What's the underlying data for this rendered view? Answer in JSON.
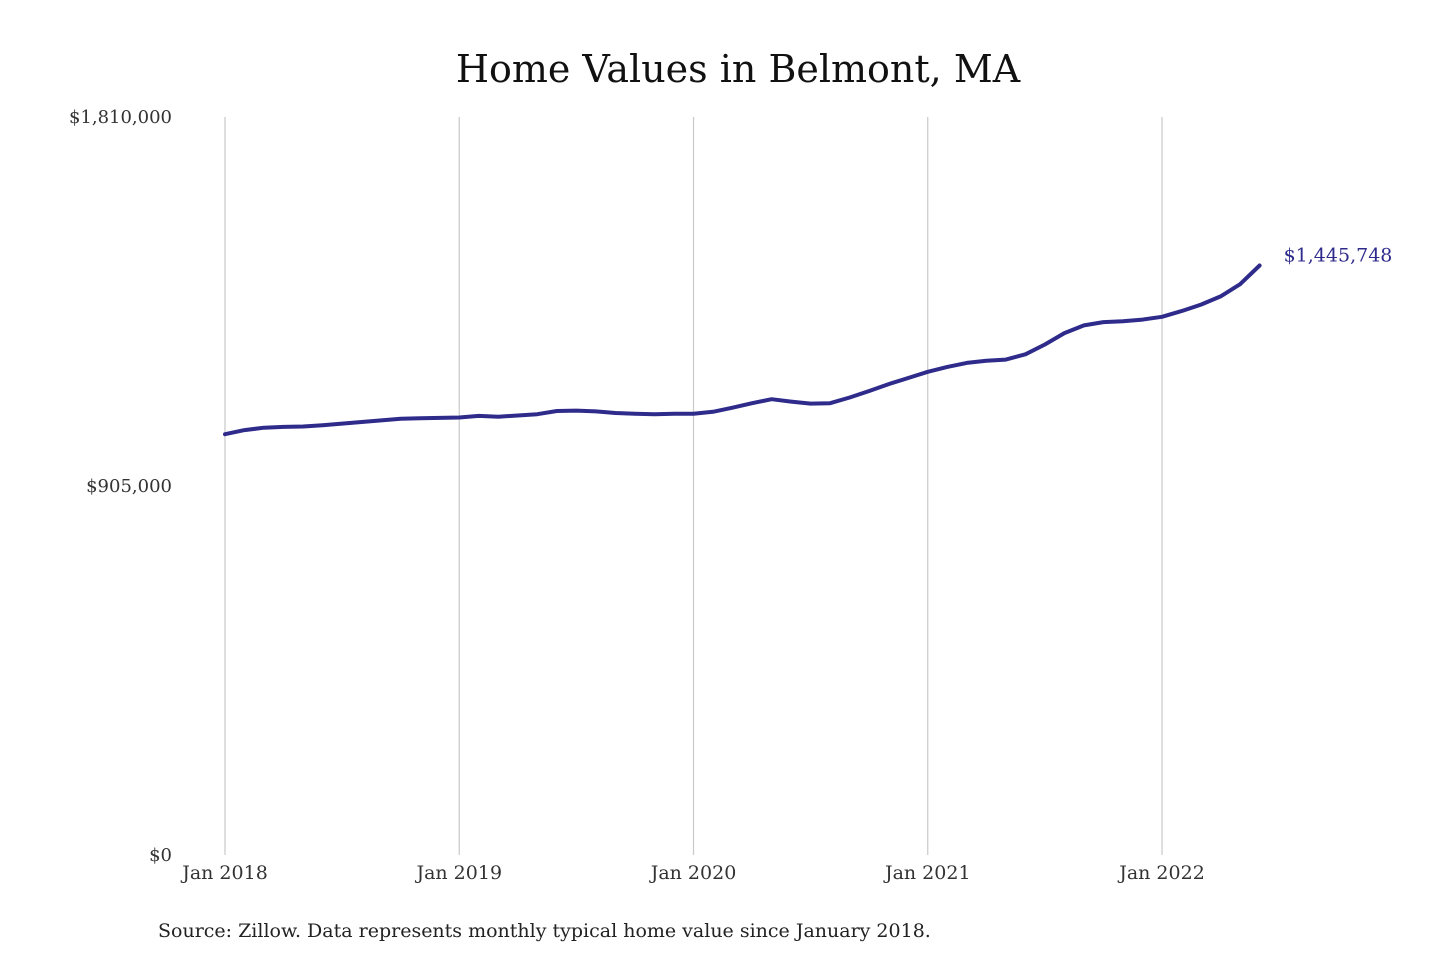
{
  "colors": {
    "line": "#2e2b8b",
    "grid": "#c9c9c9",
    "text": "#111111"
  },
  "chart_data": {
    "type": "line",
    "title": "Home Values in Belmont, MA",
    "xlabel": "",
    "ylabel": "",
    "ylim": [
      0,
      1810000
    ],
    "grid": "vertical at x tick positions",
    "legend": "none",
    "yticks": [
      {
        "value": 0,
        "label": "$0"
      },
      {
        "value": 905000,
        "label": "$905,000"
      },
      {
        "value": 1810000,
        "label": "$1,810,000"
      }
    ],
    "xticks": [
      {
        "value": 0,
        "label": "Jan 2018"
      },
      {
        "value": 12,
        "label": "Jan 2019"
      },
      {
        "value": 24,
        "label": "Jan 2020"
      },
      {
        "value": 36,
        "label": "Jan 2021"
      },
      {
        "value": 48,
        "label": "Jan 2022"
      }
    ],
    "series": [
      {
        "x": [
          "2018-01",
          "2018-02",
          "2018-03",
          "2018-04",
          "2018-05",
          "2018-06",
          "2018-07",
          "2018-08",
          "2018-09",
          "2018-10",
          "2018-11",
          "2018-12",
          "2019-01",
          "2019-02",
          "2019-03",
          "2019-04",
          "2019-05",
          "2019-06",
          "2019-07",
          "2019-08",
          "2019-09",
          "2019-10",
          "2019-11",
          "2019-12",
          "2020-01",
          "2020-02",
          "2020-03",
          "2020-04",
          "2020-05",
          "2020-06",
          "2020-07",
          "2020-08",
          "2020-09",
          "2020-10",
          "2020-11",
          "2020-12",
          "2021-01",
          "2021-02",
          "2021-03",
          "2021-04",
          "2021-05",
          "2021-06",
          "2021-07",
          "2021-08",
          "2021-09",
          "2021-10",
          "2021-11",
          "2021-12",
          "2022-01",
          "2022-02",
          "2022-03",
          "2022-04",
          "2022-05",
          "2022-06"
        ],
        "values": [
          1032000,
          1042000,
          1048000,
          1050000,
          1051000,
          1054000,
          1058000,
          1062000,
          1066000,
          1070000,
          1071000,
          1072000,
          1073000,
          1077000,
          1075000,
          1078000,
          1081000,
          1089000,
          1090000,
          1088000,
          1084000,
          1082000,
          1081000,
          1082000,
          1082000,
          1087000,
          1097000,
          1108000,
          1118000,
          1112000,
          1107000,
          1108000,
          1122000,
          1138000,
          1155000,
          1170000,
          1185000,
          1197000,
          1207000,
          1212000,
          1215000,
          1228000,
          1252000,
          1280000,
          1299000,
          1307000,
          1309000,
          1313000,
          1320000,
          1334000,
          1350000,
          1370000,
          1400000,
          1445748
        ]
      }
    ],
    "end_label": "$1,445,748"
  },
  "source_note": "Source: Zillow. Data represents monthly typical home value since January 2018."
}
